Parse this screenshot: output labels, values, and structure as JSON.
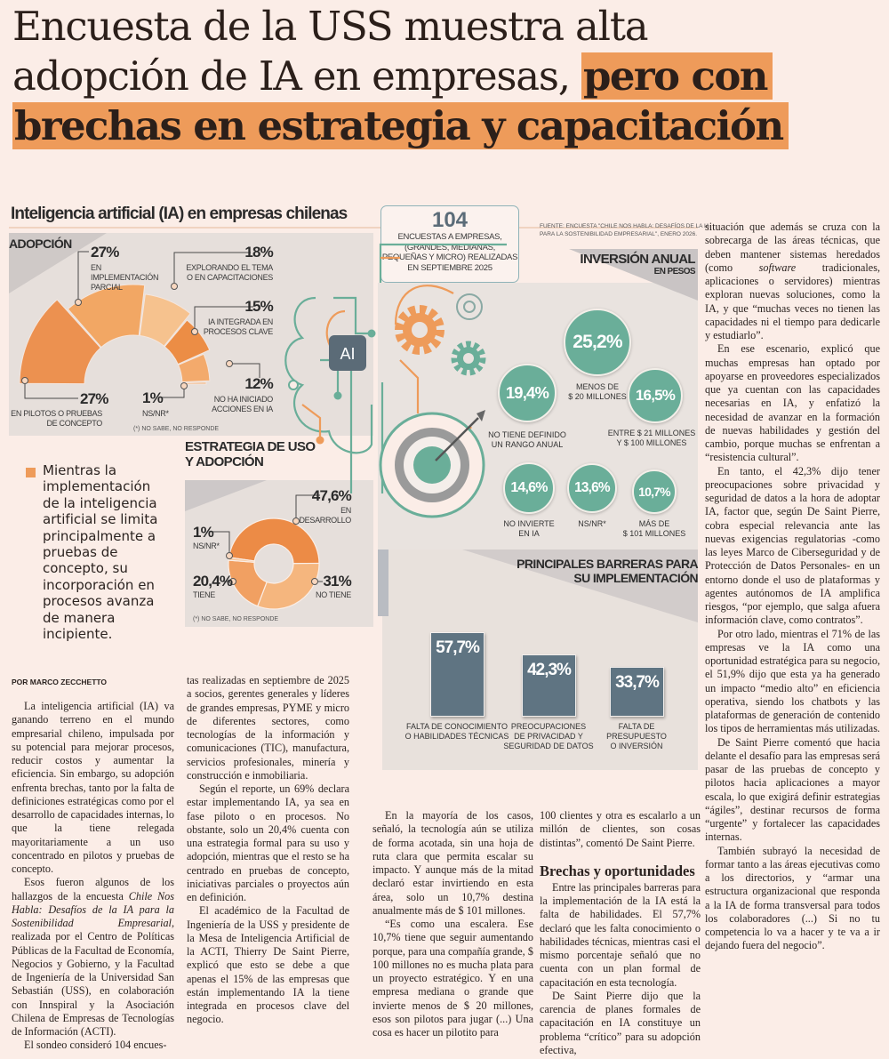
{
  "headline": {
    "line1": "Encuesta de la USS muestra alta",
    "line2": "adopción de IA en empresas,",
    "line2_highlight": "pero con",
    "line3_highlight": "brechas en estrategia y capacitación",
    "highlight_color": "#ee9b5a"
  },
  "infographic": {
    "title": "Inteligencia artificial (IA) en empresas chilenas",
    "survey_box": {
      "count": "104",
      "text": "ENCUESTAS A EMPRESAS,\n(GRANDES, MEDIANAS,\nPEQUEÑAS Y MICRO) REALIZADAS\nEN SEPTIEMBRE 2025"
    },
    "source": "FUENTE: ENCUESTA \"CHILE NOS HABLA: DESAFÍOS DE LA IA\nPARA LA SOSTENIBILIDAD EMPRESARIAL\", ENERO 2026.",
    "ai_chip_label": "AI",
    "colors": {
      "orange": "#ee9b5a",
      "teal": "#6aae99",
      "slate": "#5f7482",
      "panel": "#e6dfdb"
    },
    "adoption": {
      "title": "ADOPCIÓN",
      "footnote": "(*) NO SABE, NO RESPONDE",
      "segments": [
        {
          "value": 27,
          "value_label": "27%",
          "label": "EN PILOTOS O PRUEBAS\nDE CONCEPTO",
          "color": "#ec9150"
        },
        {
          "value": 27,
          "value_label": "27%",
          "label": "EN\nIMPLEMENTACIÓN\nPARCIAL",
          "color": "#f2a764"
        },
        {
          "value": 18,
          "value_label": "18%",
          "label": "EXPLORANDO EL TEMA\nO EN CAPACITACIONES",
          "color": "#f6c28e"
        },
        {
          "value": 15,
          "value_label": "15%",
          "label": "IA INTEGRADA EN\nPROCESOS CLAVE",
          "color": "#ec8d45"
        },
        {
          "value": 12,
          "value_label": "12%",
          "label": "NO HA INICIADO\nACCIONES EN IA",
          "color": "#f3aa6c"
        },
        {
          "value": 1,
          "value_label": "1%",
          "label": "NS/NR*",
          "color": "#f2b27a"
        }
      ]
    },
    "strategy": {
      "title": "ESTRATEGIA DE USO\nY ADOPCIÓN",
      "footnote": "(*) NO SABE, NO RESPONDE",
      "slices": [
        {
          "value": 47.6,
          "value_label": "47,6%",
          "label": "EN\nDESARROLLO",
          "color": "#ec8b46"
        },
        {
          "value": 31,
          "value_label": "31%",
          "label": "NO TIENE",
          "color": "#f5b67e"
        },
        {
          "value": 20.4,
          "value_label": "20,4%",
          "label": "TIENE",
          "color": "#f1a062"
        },
        {
          "value": 1,
          "value_label": "1%",
          "label": "NS/NR*",
          "color": "#f7caa2"
        }
      ]
    },
    "investment": {
      "title": "INVERSIÓN ANUAL",
      "subtitle": "EN PESOS",
      "items": [
        {
          "value": 25.2,
          "value_label": "25,2%",
          "label": "MENOS DE\n$ 20 MILLONES"
        },
        {
          "value": 19.4,
          "value_label": "19,4%",
          "label": "NO TIENE DEFINIDO\nUN RANGO ANUAL"
        },
        {
          "value": 16.5,
          "value_label": "16,5%",
          "label": "ENTRE $ 21 MILLONES\nY $ 100 MILLONES"
        },
        {
          "value": 14.6,
          "value_label": "14,6%",
          "label": "NO INVIERTE\nEN IA"
        },
        {
          "value": 13.6,
          "value_label": "13,6%",
          "label": "NS/NR*"
        },
        {
          "value": 10.7,
          "value_label": "10,7%",
          "label": "MÁS DE\n$ 101 MILLONES"
        }
      ]
    },
    "barriers": {
      "title": "PRINCIPALES BARRERAS PARA\nSU IMPLEMENTACIÓN",
      "items": [
        {
          "value": 57.7,
          "value_label": "57,7%",
          "label": "FALTA DE CONOCIMIENTO\nO HABILIDADES TÉCNICAS"
        },
        {
          "value": 42.3,
          "value_label": "42,3%",
          "label": "PREOCUPACIONES\nDE PRIVACIDAD Y\nSEGURIDAD DE DATOS"
        },
        {
          "value": 33.7,
          "value_label": "33,7%",
          "label": "FALTA DE\nPRESUPUESTO\nO INVERSIÓN"
        }
      ]
    }
  },
  "pull_quote": "Mientras la implementación de la inteligencia artificial se limita principalmente a pruebas de concepto, su incorporación en procesos avanza de manera incipiente.",
  "article": {
    "byline": "POR MARCO ZECCHETTO",
    "columns": [
      {
        "paragraphs": [
          {
            "segments": [
              {
                "text": "La inteligencia artificial (IA) va ganando terreno en el mundo empresarial chileno, impulsada por su potencial para mejorar procesos, reducir costos y aumentar la eficiencia. Sin embargo, su adopción enfrenta brechas, tanto por la falta de definiciones estratégicas como por el desarrollo de capacidades internas, lo que la tiene relegada mayoritariamente a un uso concentrado en pilotos y pruebas de concepto."
              }
            ]
          },
          {
            "segments": [
              {
                "text": "Esos fueron algunos de los hallazgos de la encuesta "
              },
              {
                "text": "Chile Nos Habla: Desafíos de la IA para la Sostenibilidad Empresarial",
                "italic": true
              },
              {
                "text": ", realizada por el Centro de Políticas Públicas de la Facultad de Economía, Negocios y Gobierno, y la Facultad de Ingeniería de la Universidad San Sebastián (USS), en colaboración con Innspiral y la Asociación Chilena de Empresas de Tecnologías de Información (ACTI)."
              }
            ]
          },
          {
            "segments": [
              {
                "text": "El sondeo consideró 104 encues-"
              }
            ]
          }
        ]
      },
      {
        "paragraphs": [
          {
            "noindent": true,
            "segments": [
              {
                "text": "tas realizadas en septiembre de 2025 a socios, gerentes generales y líderes de grandes empresas, PYME y micro de diferentes sectores, como tecnologías de la información y comunicaciones (TIC), manufactura, servicios profesionales, minería y construcción e inmobiliaria."
              }
            ]
          },
          {
            "segments": [
              {
                "text": "Según el reporte, un 69% declara estar implementando IA, ya sea en fase piloto o en procesos. No obstante, solo un 20,4% cuenta con una estrategia formal para su uso y adopción, mientras que el resto se ha centrado en pruebas de concepto, iniciativas parciales o proyectos aún en definición."
              }
            ]
          },
          {
            "segments": [
              {
                "text": "El académico de la Facultad de Ingeniería de la USS y presidente de la Mesa de Inteligencia Artificial de la ACTI, Thierry De Saint Pierre, explicó que esto se debe a que apenas el 15% de las empresas que están implementando IA la tiene integrada en procesos clave del negocio."
              }
            ]
          }
        ]
      },
      {
        "paragraphs": [
          {
            "segments": [
              {
                "text": "En la mayoría de los casos, señaló, la tecnología aún se utiliza de forma acotada, sin una hoja de ruta clara que permita escalar su impacto. Y aunque más de la mitad declaró estar invirtiendo en esta área, solo un 10,7% destina anualmente más de $ 101 millones."
              }
            ]
          },
          {
            "segments": [
              {
                "text": "“Es como una escalera. Ese 10,7% tiene que seguir aumentando porque, para una compañía grande, $ 100 millones no es mucha plata para un proyecto estratégico. Y en una empresa mediana o grande que invierte menos de $ 20 millones, esos son pilotos para jugar (...) Una cosa es hacer un pilotito para"
              }
            ]
          }
        ]
      },
      {
        "paragraphs": [
          {
            "noindent": true,
            "segments": [
              {
                "text": "100 clientes y otra es escalarlo a un millón de clientes, son cosas distintas”, comentó De Saint Pierre."
              }
            ]
          },
          {
            "heading": "Brechas y oportunidades"
          },
          {
            "segments": [
              {
                "text": "Entre las principales barreras para la implementación de la IA está la falta de habilidades. El 57,7% declaró que les falta conocimiento o habilidades técnicas, mientras casi el mismo porcentaje señaló que no cuenta con un plan formal de capacitación en esta tecnología."
              }
            ]
          },
          {
            "segments": [
              {
                "text": "De Saint Pierre dijo que la carencia de planes formales de capacitación en IA constituye un problema “crítico” para su adopción efectiva,"
              }
            ]
          }
        ]
      },
      {
        "paragraphs": [
          {
            "noindent": true,
            "segments": [
              {
                "text": "situación que además se cruza con la sobrecarga de las áreas técnicas, que deben mantener sistemas heredados (como "
              },
              {
                "text": "software",
                "italic": true
              },
              {
                "text": " tradicionales, aplicaciones o servidores) mientras exploran nuevas soluciones, como la IA, y que “muchas veces no tienen las capacidades ni el tiempo para dedicarle y estudiarlo”."
              }
            ]
          },
          {
            "segments": [
              {
                "text": "En ese escenario, explicó que muchas empresas han optado por apoyarse en proveedores especializados que ya cuentan con las capacidades necesarias en IA, y enfatizó la necesidad de avanzar en la formación de nuevas habilidades y gestión del cambio, porque muchas se enfrentan a “resistencia cultural”."
              }
            ]
          },
          {
            "segments": [
              {
                "text": "En tanto, el 42,3% dijo tener preocupaciones sobre privacidad y seguridad de datos a la hora de adoptar IA, factor que, según De Saint Pierre, cobra especial relevancia ante las nuevas exigencias regulatorias -como las leyes Marco de Ciberseguridad y de Protección de Datos Personales- en un entorno donde el uso de plataformas y agentes autónomos de IA amplifica riesgos, “por ejemplo, que salga afuera información clave, como contratos”."
              }
            ]
          },
          {
            "segments": [
              {
                "text": "Por otro lado, mientras el 71% de las empresas ve la IA como una oportunidad estratégica para su negocio, el 51,9% dijo que esta ya ha generado un impacto “medio alto” en eficiencia operativa, siendo los chatbots y las plataformas de generación de contenido los tipos de herramientas más utilizadas."
              }
            ]
          },
          {
            "segments": [
              {
                "text": "De Saint Pierre comentó que hacia delante el desafío para las empresas será pasar de las pruebas de concepto y pilotos hacia aplicaciones a mayor escala, lo que exigirá definir estrategias “ágiles”, destinar recursos de forma “urgente” y fortalecer las capacidades internas."
              }
            ]
          },
          {
            "segments": [
              {
                "text": "También subrayó la necesidad de formar tanto a las áreas ejecutivas como a los directorios, y “armar una estructura organizacional que responda a la IA de forma transversal para todos los colaboradores (...) Si no tu competencia lo va a hacer y te va a ir dejando fuera del negocio”."
              }
            ]
          }
        ]
      }
    ]
  }
}
